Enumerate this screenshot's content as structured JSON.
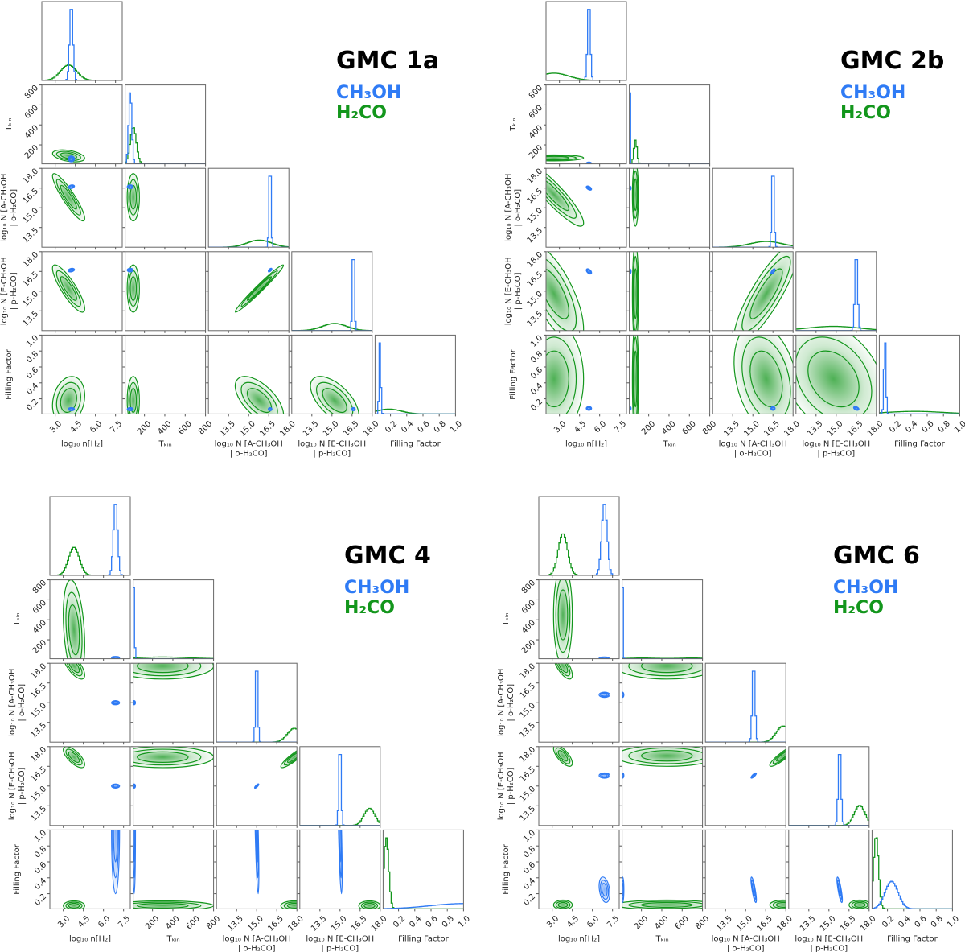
{
  "chart_data": {
    "type": "corner",
    "colors": {
      "CH3OH": "#2f7bf5",
      "H2CO": "#13961c"
    },
    "legend": [
      {
        "key": "CH3OH",
        "label": "CH₃OH"
      },
      {
        "key": "H2CO",
        "label": "H₂CO"
      }
    ],
    "params": [
      {
        "key": "n",
        "label": [
          "log₁₀ n[H₂]"
        ],
        "range": [
          2,
          8
        ],
        "ticks": [
          "3.0",
          "4.5",
          "6.0",
          "7.5"
        ]
      },
      {
        "key": "T",
        "label": [
          "Tₖᵢₙ"
        ],
        "range": [
          10,
          800
        ],
        "ticks": [
          "200",
          "400",
          "600",
          "800"
        ]
      },
      {
        "key": "NA",
        "label": [
          "log₁₀ N [A-CH₃OH",
          "| o-H₂CO]"
        ],
        "range": [
          12,
          18
        ],
        "ticks": [
          "13.5",
          "15.0",
          "16.5",
          "18.0"
        ]
      },
      {
        "key": "NE",
        "label": [
          "log₁₀ N [E-CH₃OH",
          "| p-H₂CO]"
        ],
        "range": [
          12,
          18
        ],
        "ticks": [
          "13.5",
          "15.0",
          "16.5",
          "18.0"
        ]
      },
      {
        "key": "FF",
        "label": [
          "Filling Factor"
        ],
        "range": [
          0.01,
          1.0
        ],
        "ticks": [
          "0.2",
          "0.4",
          "0.6",
          "0.8",
          "1.0"
        ]
      }
    ],
    "panels": [
      {
        "title": "GMC 1a",
        "series": {
          "CH3OH": {
            "mu": {
              "n": 4.2,
              "T": 60,
              "NA": 16.6,
              "NE": 16.6,
              "FF": 0.07
            },
            "sd": {
              "n": 0.12,
              "T": 15,
              "NA": 0.07,
              "NE": 0.07,
              "FF": 0.01
            },
            "corr": {
              "n|NA": 0.3,
              "n|NE": 0.3,
              "NA|NE": 0.6
            }
          },
          "H2CO": {
            "mu": {
              "n": 4.0,
              "T": 90,
              "NA": 15.8,
              "NE": 15.2,
              "FF": 0.18
            },
            "sd": {
              "n": 0.6,
              "T": 30,
              "NA": 0.9,
              "NE": 0.9,
              "FF": 0.15
            },
            "corr": {
              "n|T": -0.4,
              "n|NA": -0.9,
              "n|NE": -0.85,
              "NA|NE": 0.98,
              "NA|FF": -0.6,
              "NE|FF": -0.6,
              "n|FF": 0.2
            }
          }
        }
      },
      {
        "title": "GMC 2b",
        "series": {
          "CH3OH": {
            "mu": {
              "n": 5.2,
              "T": 15,
              "NA": 16.5,
              "NE": 16.5,
              "FF": 0.08
            },
            "sd": {
              "n": 0.1,
              "T": 3,
              "NA": 0.08,
              "NE": 0.1,
              "FF": 0.012
            },
            "corr": {
              "n|NA": -0.5,
              "n|NE": -0.5,
              "NA|NE": 0.7,
              "NE|FF": -0.4
            }
          },
          "H2CO": {
            "mu": {
              "n": 2.6,
              "T": 70,
              "NA": 16.0,
              "NE": 14.8,
              "FF": 0.45
            },
            "sd": {
              "n": 1.1,
              "T": 15,
              "NA": 1.2,
              "NE": 1.9,
              "FF": 0.35
            },
            "corr": {
              "n|NA": -0.9,
              "n|NE": -0.7,
              "NA|NE": 0.85,
              "NA|FF": -0.3,
              "NE|FF": -0.3
            }
          }
        }
      },
      {
        "title": "GMC 4",
        "series": {
          "CH3OH": {
            "mu": {
              "n": 6.9,
              "T": 20,
              "NA": 15.0,
              "NE": 15.0,
              "FF": 1.0
            },
            "sd": {
              "n": 0.15,
              "T": 3,
              "NA": 0.08,
              "NE": 0.08,
              "FF": 0.4
            },
            "corr": {
              "NA|NE": 0.8,
              "NA|FF": -0.7,
              "NE|FF": -0.7
            }
          },
          "H2CO": {
            "mu": {
              "n": 3.8,
              "T": 300,
              "NA": 17.8,
              "NE": 17.2,
              "FF": 0.05
            },
            "sd": {
              "n": 0.4,
              "T": 250,
              "NA": 0.5,
              "NE": 0.4,
              "FF": 0.03
            },
            "corr": {
              "n|T": -0.3,
              "n|NA": -0.7,
              "n|NE": -0.7,
              "NA|NE": 0.9
            }
          }
        }
      },
      {
        "title": "GMC 6",
        "series": {
          "CH3OH": {
            "mu": {
              "n": 6.9,
              "T": 15,
              "NA": 15.6,
              "NE": 15.8,
              "FF": 0.25
            },
            "sd": {
              "n": 0.2,
              "T": 3,
              "NA": 0.1,
              "NE": 0.1,
              "FF": 0.08
            },
            "corr": {
              "n|FF": -0.3,
              "NA|NE": 0.8,
              "NA|FF": -0.8,
              "NE|FF": -0.8
            }
          },
          "H2CO": {
            "mu": {
              "n": 3.8,
              "T": 450,
              "NA": 17.8,
              "NE": 17.3,
              "FF": 0.06
            },
            "sd": {
              "n": 0.35,
              "T": 250,
              "NA": 0.5,
              "NE": 0.4,
              "FF": 0.03
            },
            "corr": {
              "n|NA": -0.7,
              "n|NE": -0.7,
              "NA|NE": 0.9
            }
          }
        }
      }
    ]
  }
}
